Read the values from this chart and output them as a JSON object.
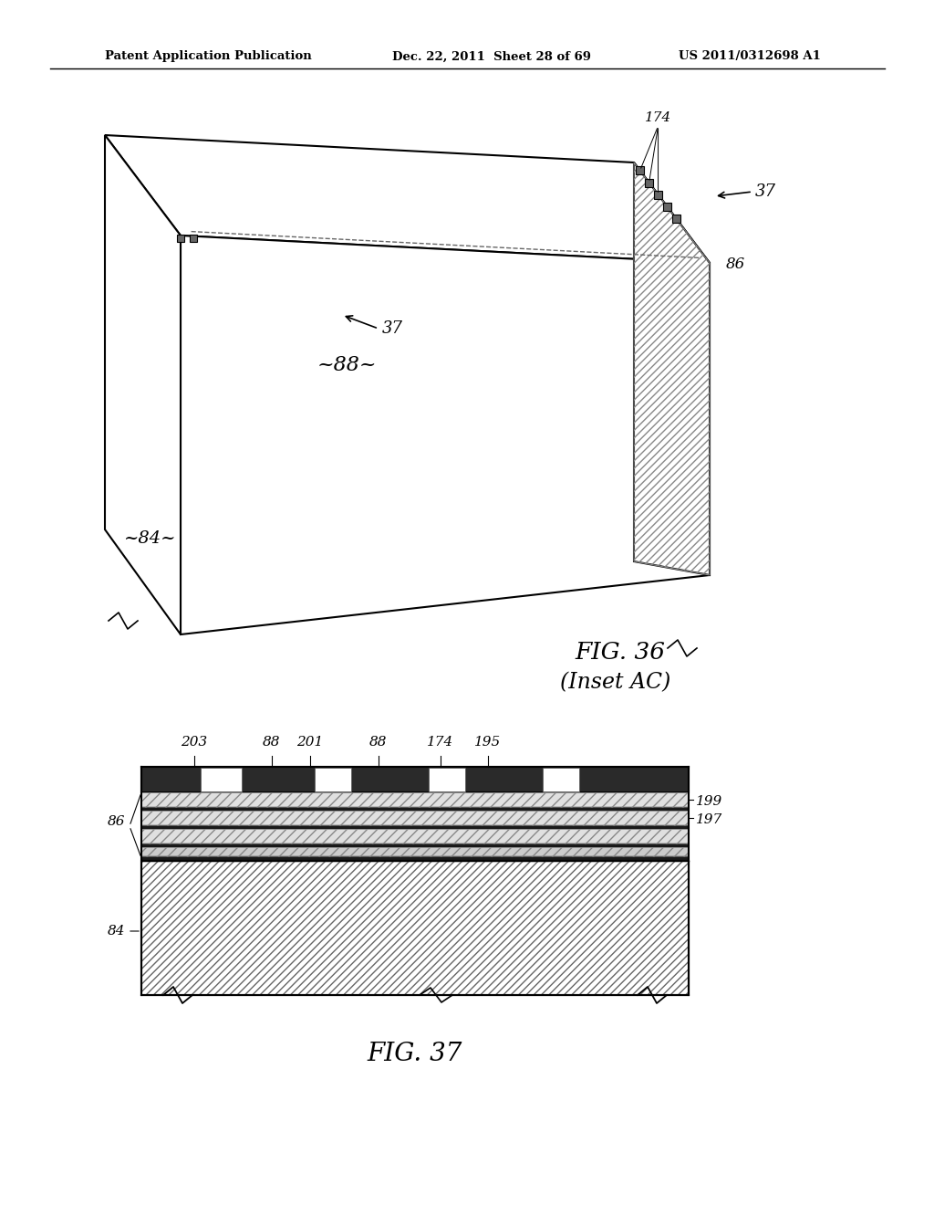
{
  "header_left": "Patent Application Publication",
  "header_middle": "Dec. 22, 2011  Sheet 28 of 69",
  "header_right": "US 2011/0312698 A1",
  "fig36_caption": "FIG. 36",
  "fig36_subcaption": "(Inset AC)",
  "fig37_caption": "FIG. 37",
  "background_color": "#ffffff",
  "line_color": "#000000"
}
